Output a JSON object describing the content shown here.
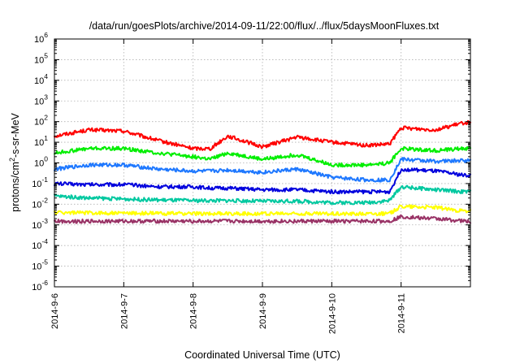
{
  "chart_data": {
    "type": "line",
    "title": "/data/run/goesPlots/archive/2014-09-11/22:00/flux/../flux/5daysMoonFluxes.txt",
    "xlabel": "Coordinated Universal Time (UTC)",
    "ylabel_parts": {
      "base": "protons/cm",
      "sup": "2",
      "tail": "-s-sr-MeV"
    },
    "yscale": "log",
    "ylim": [
      1e-06,
      1000000.0
    ],
    "xlim": [
      "2014-09-06",
      "2014-09-12"
    ],
    "grid": true,
    "x_tick_labels": [
      "2014-9-6",
      "2014-9-7",
      "2014-9-8",
      "2014-9-9",
      "2014-9-10",
      "2014-9-11"
    ],
    "x_tick_values": [
      "2014-09-06",
      "2014-09-07",
      "2014-09-08",
      "2014-09-09",
      "2014-09-10",
      "2014-09-11"
    ],
    "y_tick_exponents": [
      "-6",
      "-5",
      "-4",
      "-3",
      "-2",
      "-1",
      "0",
      "1",
      "2",
      "3",
      "4",
      "5",
      "6"
    ],
    "y_tick_values": [
      1e-06,
      1e-05,
      0.0001,
      0.001,
      0.01,
      0.1,
      1,
      10,
      100,
      1000,
      10000,
      100000,
      1000000
    ],
    "x": [
      "2014-09-06T00:00",
      "2014-09-06T12:00",
      "2014-09-07T00:00",
      "2014-09-07T12:00",
      "2014-09-08T00:00",
      "2014-09-08T06:00",
      "2014-09-08T12:00",
      "2014-09-09T00:00",
      "2014-09-09T12:00",
      "2014-09-10T00:00",
      "2014-09-10T12:00",
      "2014-09-10T20:00",
      "2014-09-11T00:00",
      "2014-09-11T12:00",
      "2014-09-11T22:00"
    ],
    "series": [
      {
        "color": "#ff0000",
        "values": [
          20,
          40,
          35,
          12,
          5,
          5,
          20,
          6,
          18,
          10,
          7,
          8,
          50,
          40,
          90
        ]
      },
      {
        "color": "#00ee00",
        "values": [
          3,
          5,
          5,
          3,
          2,
          1.5,
          3,
          1.5,
          2.5,
          0.8,
          0.8,
          1,
          5,
          4,
          5
        ]
      },
      {
        "color": "#1e78ff",
        "values": [
          0.5,
          0.8,
          0.8,
          0.5,
          0.4,
          0.4,
          0.45,
          0.35,
          0.5,
          0.2,
          0.15,
          0.15,
          1.5,
          1.2,
          1.3
        ]
      },
      {
        "color": "#0000dd",
        "values": [
          0.1,
          0.09,
          0.09,
          0.07,
          0.07,
          0.06,
          0.06,
          0.05,
          0.05,
          0.04,
          0.04,
          0.04,
          0.5,
          0.4,
          0.25
        ]
      },
      {
        "color": "#00c8a0",
        "values": [
          0.025,
          0.02,
          0.018,
          0.016,
          0.015,
          0.015,
          0.015,
          0.014,
          0.014,
          0.012,
          0.012,
          0.015,
          0.07,
          0.05,
          0.04
        ]
      },
      {
        "color": "#ffff00",
        "values": [
          0.004,
          0.0038,
          0.0037,
          0.0036,
          0.0035,
          0.0035,
          0.0035,
          0.0035,
          0.0035,
          0.0035,
          0.0035,
          0.0035,
          0.008,
          0.007,
          0.0045
        ]
      },
      {
        "color": "#993366",
        "values": [
          0.0015,
          0.0015,
          0.0015,
          0.0015,
          0.0015,
          0.0015,
          0.0015,
          0.0015,
          0.0015,
          0.0015,
          0.0015,
          0.0015,
          0.0025,
          0.002,
          0.0015
        ]
      }
    ]
  }
}
